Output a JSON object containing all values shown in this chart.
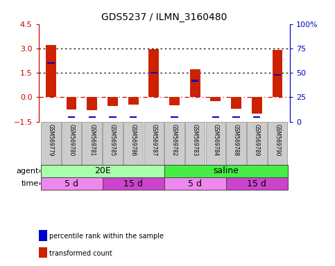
{
  "title": "GDS5237 / ILMN_3160480",
  "samples": [
    "GSM569779",
    "GSM569780",
    "GSM569781",
    "GSM569785",
    "GSM569786",
    "GSM569787",
    "GSM569782",
    "GSM569783",
    "GSM569784",
    "GSM569788",
    "GSM569789",
    "GSM569790"
  ],
  "bar_values": [
    3.2,
    -0.75,
    -0.8,
    -0.55,
    -0.45,
    2.95,
    -0.5,
    1.7,
    -0.25,
    -0.7,
    -1.0,
    2.9
  ],
  "percentile_values": [
    60,
    5,
    5,
    5,
    5,
    50,
    5,
    42,
    5,
    5,
    5,
    48
  ],
  "ylim_left": [
    -1.5,
    4.5
  ],
  "ylim_right": [
    0,
    100
  ],
  "yticks_left": [
    -1.5,
    0,
    1.5,
    3,
    4.5
  ],
  "yticks_right": [
    0,
    25,
    50,
    75,
    100
  ],
  "hlines": [
    0,
    1.5,
    3.0
  ],
  "hline_styles": [
    "dashdot_red",
    "dotted",
    "dotted"
  ],
  "hline_colors": [
    "#cc0000",
    "#000000",
    "#000000"
  ],
  "bar_color": "#cc2200",
  "percentile_color": "#0000cc",
  "agent_labels": [
    {
      "text": "20E",
      "start": 0,
      "end": 5,
      "color": "#aaffaa"
    },
    {
      "text": "saline",
      "start": 6,
      "end": 11,
      "color": "#44ee44"
    }
  ],
  "time_labels": [
    {
      "text": "5 d",
      "start": 0,
      "end": 2,
      "color": "#ee88ee"
    },
    {
      "text": "15 d",
      "start": 3,
      "end": 5,
      "color": "#cc44cc"
    },
    {
      "text": "5 d",
      "start": 6,
      "end": 8,
      "color": "#ee88ee"
    },
    {
      "text": "15 d",
      "start": 9,
      "end": 11,
      "color": "#cc44cc"
    }
  ],
  "legend_items": [
    {
      "label": "transformed count",
      "color": "#cc2200"
    },
    {
      "label": "percentile rank within the sample",
      "color": "#0000cc"
    }
  ],
  "bg_color": "#ffffff",
  "tick_label_bg": "#cccccc"
}
